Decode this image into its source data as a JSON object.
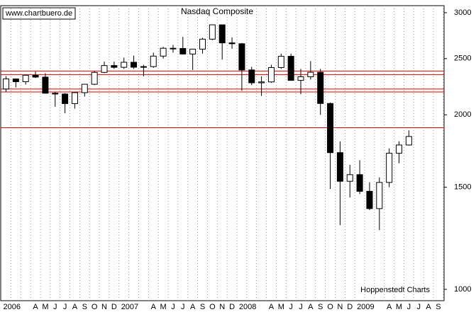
{
  "chart_data": {
    "type": "candlestick",
    "title": "Nasdaq Composite",
    "source": "www.chartbuero.de",
    "credit": "Hoppenstedt Charts",
    "categories": [
      "2006",
      null,
      null,
      "A",
      "M",
      "J",
      "J",
      "A",
      "S",
      "O",
      "N",
      "D",
      "2007",
      null,
      null,
      "A",
      "M",
      "J",
      "J",
      "A",
      "S",
      "O",
      "N",
      "D",
      "2008",
      null,
      null,
      "A",
      "M",
      "J",
      "J",
      "A",
      "S",
      "O",
      "N",
      "D",
      "2009",
      null,
      null,
      "A",
      "M",
      "J",
      "J",
      "A",
      "S"
    ],
    "open": [
      2216,
      2306,
      2281,
      2340,
      2323,
      2179,
      2172,
      2091,
      2184,
      2258,
      2367,
      2432,
      2415,
      2464,
      2416,
      2422,
      2525,
      2605,
      2603,
      2546,
      2596,
      2701,
      2859,
      2661,
      2652,
      2390,
      2271,
      2279,
      2413,
      2523,
      2293,
      2326,
      2368,
      2092,
      1721,
      1536,
      1577,
      1476,
      1378,
      1529,
      1717,
      1774,
      null,
      null,
      null
    ],
    "high": [
      2332,
      2310,
      2345,
      2375,
      2360,
      2190,
      2180,
      2190,
      2260,
      2380,
      2470,
      2470,
      2510,
      2530,
      2440,
      2560,
      2620,
      2640,
      2725,
      2600,
      2715,
      2862,
      2860,
      2720,
      2660,
      2420,
      2330,
      2440,
      2550,
      2550,
      2400,
      2475,
      2400,
      2100,
      1800,
      1640,
      1670,
      1530,
      1560,
      1750,
      1800,
      1880,
      null,
      null,
      null
    ],
    "low": [
      2190,
      2230,
      2255,
      2315,
      2180,
      2065,
      2012,
      2050,
      2150,
      2250,
      2360,
      2400,
      2400,
      2400,
      2330,
      2410,
      2500,
      2560,
      2540,
      2390,
      2550,
      2690,
      2490,
      2600,
      2200,
      2250,
      2155,
      2270,
      2400,
      2290,
      2170,
      2300,
      2000,
      1490,
      1290,
      1440,
      1460,
      1370,
      1265,
      1500,
      1650,
      1770,
      null,
      null,
      null
    ],
    "close": [
      2306,
      2281,
      2340,
      2323,
      2179,
      2172,
      2091,
      2184,
      2258,
      2367,
      2432,
      2415,
      2464,
      2416,
      2422,
      2525,
      2605,
      2603,
      2546,
      2596,
      2701,
      2859,
      2661,
      2652,
      2390,
      2271,
      2279,
      2413,
      2523,
      2293,
      2326,
      2368,
      2092,
      1721,
      1536,
      1577,
      1476,
      1378,
      1529,
      1717,
      1774,
      1835,
      null,
      null,
      null
    ],
    "reference_lines": [
      2380,
      2345,
      2215,
      2190,
      1900
    ],
    "reference_color": "#e00000",
    "log_scale": true,
    "ylim": [
      956,
      3085
    ],
    "yticks": [
      1000,
      1500,
      2000,
      2500,
      3000
    ],
    "grid": true
  }
}
